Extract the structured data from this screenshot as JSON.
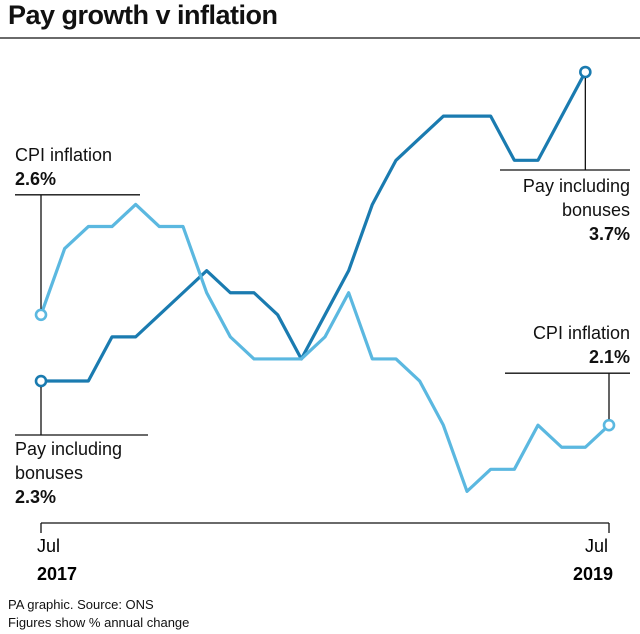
{
  "chart_data": {
    "type": "line",
    "title": "Pay growth v inflation",
    "footnotes": [
      "PA graphic. Source: ONS",
      "Figures show % annual change"
    ],
    "categories": [
      "Jul 2017",
      null,
      null,
      null,
      null,
      null,
      null,
      null,
      null,
      null,
      null,
      null,
      null,
      null,
      null,
      null,
      null,
      null,
      null,
      null,
      null,
      null,
      null,
      null,
      "Jul 2019"
    ],
    "ylim": [
      1.5,
      4.0
    ],
    "series": [
      {
        "name": "Pay including bonuses",
        "color": "#1a7bb0",
        "values": [
          2.3,
          2.3,
          2.3,
          2.5,
          2.5,
          2.6,
          2.7,
          2.8,
          2.7,
          2.7,
          2.6,
          2.4,
          2.6,
          2.8,
          3.1,
          3.3,
          3.4,
          3.5,
          3.5,
          3.5,
          3.3,
          3.3,
          3.5,
          3.7,
          null
        ],
        "value_labels": [
          "2.3%",
          null,
          null,
          null,
          null,
          null,
          null,
          null,
          null,
          null,
          null,
          null,
          null,
          null,
          null,
          null,
          null,
          null,
          null,
          null,
          null,
          null,
          null,
          "3.7%",
          null
        ]
      },
      {
        "name": "CPI inflation",
        "color": "#5bb8e0",
        "values": [
          2.6,
          2.9,
          3.0,
          3.0,
          3.1,
          3.0,
          3.0,
          2.7,
          2.5,
          2.4,
          2.4,
          2.4,
          2.5,
          2.7,
          2.4,
          2.4,
          2.3,
          2.1,
          1.8,
          1.9,
          1.9,
          2.1,
          2.0,
          2.0,
          2.1
        ],
        "value_labels": [
          "2.6%",
          null,
          null,
          null,
          null,
          null,
          null,
          null,
          null,
          null,
          null,
          null,
          null,
          null,
          null,
          null,
          null,
          null,
          null,
          null,
          null,
          null,
          null,
          null,
          "2.1%"
        ]
      }
    ]
  }
}
